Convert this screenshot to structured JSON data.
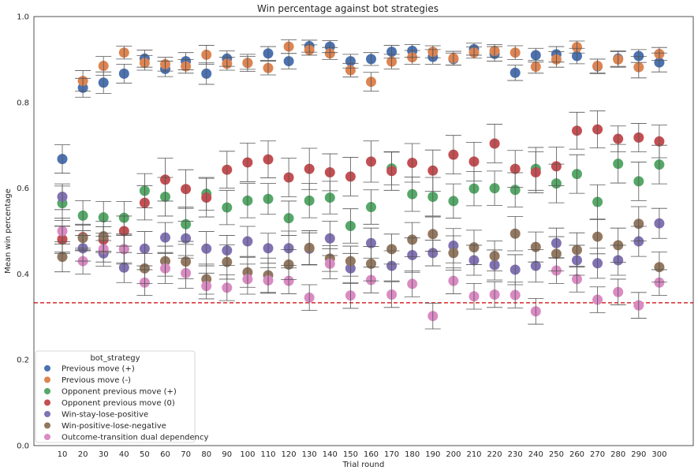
{
  "chart_data": {
    "type": "scatter",
    "title": "Win percentage against bot strategies",
    "xlabel": "Trial round",
    "ylabel": "Mean win percentage",
    "ylim": [
      0.0,
      1.0
    ],
    "yticks": [
      "0.0",
      "0.2",
      "0.4",
      "0.6",
      "0.8",
      "1.0"
    ],
    "categories": [
      "10",
      "20",
      "30",
      "40",
      "50",
      "60",
      "70",
      "80",
      "90",
      "100",
      "110",
      "120",
      "130",
      "140",
      "150",
      "160",
      "170",
      "180",
      "190",
      "200",
      "210",
      "220",
      "230",
      "240",
      "250",
      "260",
      "270",
      "280",
      "290",
      "300"
    ],
    "reference_line": {
      "y": 0.333,
      "color": "#d62728",
      "style": "dashed"
    },
    "grid": false,
    "legend": {
      "title": "bot_strategy",
      "position": "lower-left"
    },
    "series": [
      {
        "name": "Previous move (+)",
        "color": "#4c72b0",
        "values": [
          0.668,
          0.834,
          0.846,
          0.867,
          0.902,
          0.878,
          0.896,
          0.867,
          0.902,
          0.892,
          0.914,
          0.896,
          0.931,
          0.93,
          0.896,
          0.901,
          0.918,
          0.92,
          0.906,
          0.901,
          0.924,
          0.913,
          0.869,
          0.91,
          0.912,
          0.908,
          0.884,
          0.902,
          0.908,
          0.893
        ],
        "err": [
          0.033,
          0.022,
          0.025,
          0.022,
          0.02,
          0.018,
          0.02,
          0.025,
          0.018,
          0.02,
          0.016,
          0.018,
          0.014,
          0.014,
          0.016,
          0.015,
          0.015,
          0.015,
          0.017,
          0.014,
          0.014,
          0.017,
          0.018,
          0.016,
          0.018,
          0.018,
          0.017,
          0.018,
          0.015,
          0.022
        ]
      },
      {
        "name": "Previous move (-)",
        "color": "#dd8452",
        "values": [
          0.48,
          0.85,
          0.885,
          0.916,
          0.892,
          0.889,
          0.884,
          0.911,
          0.89,
          0.892,
          0.88,
          0.93,
          0.922,
          0.914,
          0.875,
          0.848,
          0.895,
          0.905,
          0.918,
          0.903,
          0.916,
          0.92,
          0.916,
          0.883,
          0.9,
          0.929,
          0.885,
          0.9,
          0.882,
          0.913
        ],
        "err": [
          0.032,
          0.024,
          0.022,
          0.015,
          0.017,
          0.016,
          0.016,
          0.022,
          0.015,
          0.015,
          0.016,
          0.016,
          0.012,
          0.014,
          0.016,
          0.022,
          0.017,
          0.016,
          0.014,
          0.016,
          0.013,
          0.015,
          0.016,
          0.015,
          0.018,
          0.014,
          0.016,
          0.018,
          0.025,
          0.015
        ]
      },
      {
        "name": "Opponent previous move (+)",
        "color": "#55a868",
        "values": [
          0.565,
          0.536,
          0.532,
          0.531,
          0.594,
          0.58,
          0.516,
          0.587,
          0.555,
          0.571,
          0.575,
          0.53,
          0.571,
          0.578,
          0.512,
          0.556,
          0.646,
          0.586,
          0.58,
          0.57,
          0.599,
          0.6,
          0.596,
          0.645,
          0.611,
          0.633,
          0.568,
          0.657,
          0.616,
          0.655
        ],
        "err": [
          0.04,
          0.035,
          0.037,
          0.038,
          0.04,
          0.045,
          0.04,
          0.038,
          0.04,
          0.04,
          0.036,
          0.04,
          0.04,
          0.038,
          0.04,
          0.04,
          0.038,
          0.04,
          0.045,
          0.04,
          0.04,
          0.04,
          0.04,
          0.05,
          0.045,
          0.045,
          0.04,
          0.045,
          0.045,
          0.045
        ]
      },
      {
        "name": "Opponent previous move (0)",
        "color": "#c44e52",
        "values": [
          0.481,
          0.486,
          0.48,
          0.5,
          0.566,
          0.62,
          0.598,
          0.578,
          0.643,
          0.66,
          0.667,
          0.625,
          0.645,
          0.637,
          0.627,
          0.662,
          0.64,
          0.659,
          0.641,
          0.678,
          0.662,
          0.704,
          0.645,
          0.637,
          0.651,
          0.734,
          0.737,
          0.715,
          0.718,
          0.709
        ],
        "err": [
          0.03,
          0.03,
          0.03,
          0.035,
          0.04,
          0.05,
          0.045,
          0.045,
          0.043,
          0.045,
          0.043,
          0.045,
          0.048,
          0.043,
          0.045,
          0.048,
          0.045,
          0.045,
          0.048,
          0.045,
          0.045,
          0.045,
          0.043,
          0.048,
          0.045,
          0.043,
          0.043,
          0.03,
          0.033,
          0.038
        ]
      },
      {
        "name": "Win-stay-lose-positive",
        "color": "#8172b3",
        "values": [
          0.58,
          0.46,
          0.448,
          0.415,
          0.459,
          0.485,
          0.483,
          0.459,
          0.455,
          0.476,
          0.46,
          0.46,
          0.459,
          0.483,
          0.413,
          0.472,
          0.419,
          0.444,
          0.449,
          0.466,
          0.432,
          0.421,
          0.41,
          0.419,
          0.472,
          0.432,
          0.425,
          0.432,
          0.476,
          0.518
        ],
        "err": [
          0.03,
          0.03,
          0.03,
          0.035,
          0.04,
          0.035,
          0.04,
          0.04,
          0.035,
          0.035,
          0.035,
          0.04,
          0.037,
          0.04,
          0.035,
          0.035,
          0.035,
          0.04,
          0.03,
          0.04,
          0.035,
          0.035,
          0.035,
          0.038,
          0.035,
          0.035,
          0.035,
          0.035,
          0.035,
          0.035
        ]
      },
      {
        "name": "Win-positive-lose-negative",
        "color": "#937860",
        "values": [
          0.44,
          0.484,
          0.488,
          0.458,
          0.413,
          0.43,
          0.429,
          0.388,
          0.428,
          0.404,
          0.397,
          0.422,
          0.461,
          0.436,
          0.43,
          0.424,
          0.458,
          0.48,
          0.493,
          0.449,
          0.462,
          0.442,
          0.494,
          0.463,
          0.447,
          0.456,
          0.487,
          0.467,
          0.517,
          0.416
        ],
        "err": [
          0.035,
          0.03,
          0.035,
          0.032,
          0.035,
          0.035,
          0.04,
          0.035,
          0.04,
          0.035,
          0.04,
          0.035,
          0.04,
          0.03,
          0.035,
          0.04,
          0.035,
          0.04,
          0.04,
          0.04,
          0.04,
          0.035,
          0.04,
          0.035,
          0.04,
          0.04,
          0.04,
          0.04,
          0.04,
          0.035
        ]
      },
      {
        "name": "Outcome-transition dual dependency",
        "color": "#da8bc3",
        "values": [
          0.5,
          0.43,
          0.458,
          0.458,
          0.38,
          0.413,
          0.402,
          0.372,
          0.368,
          0.388,
          0.385,
          0.384,
          0.345,
          0.424,
          0.35,
          0.386,
          0.352,
          0.377,
          0.302,
          0.384,
          0.348,
          0.352,
          0.351,
          0.313,
          0.408,
          0.388,
          0.34,
          0.358,
          0.327,
          0.38
        ],
        "err": [
          0.03,
          0.03,
          0.03,
          0.035,
          0.03,
          0.035,
          0.035,
          0.03,
          0.03,
          0.035,
          0.03,
          0.03,
          0.03,
          0.035,
          0.03,
          0.03,
          0.03,
          0.03,
          0.03,
          0.03,
          0.03,
          0.03,
          0.03,
          0.03,
          0.03,
          0.03,
          0.03,
          0.03,
          0.03,
          0.03
        ]
      }
    ]
  }
}
